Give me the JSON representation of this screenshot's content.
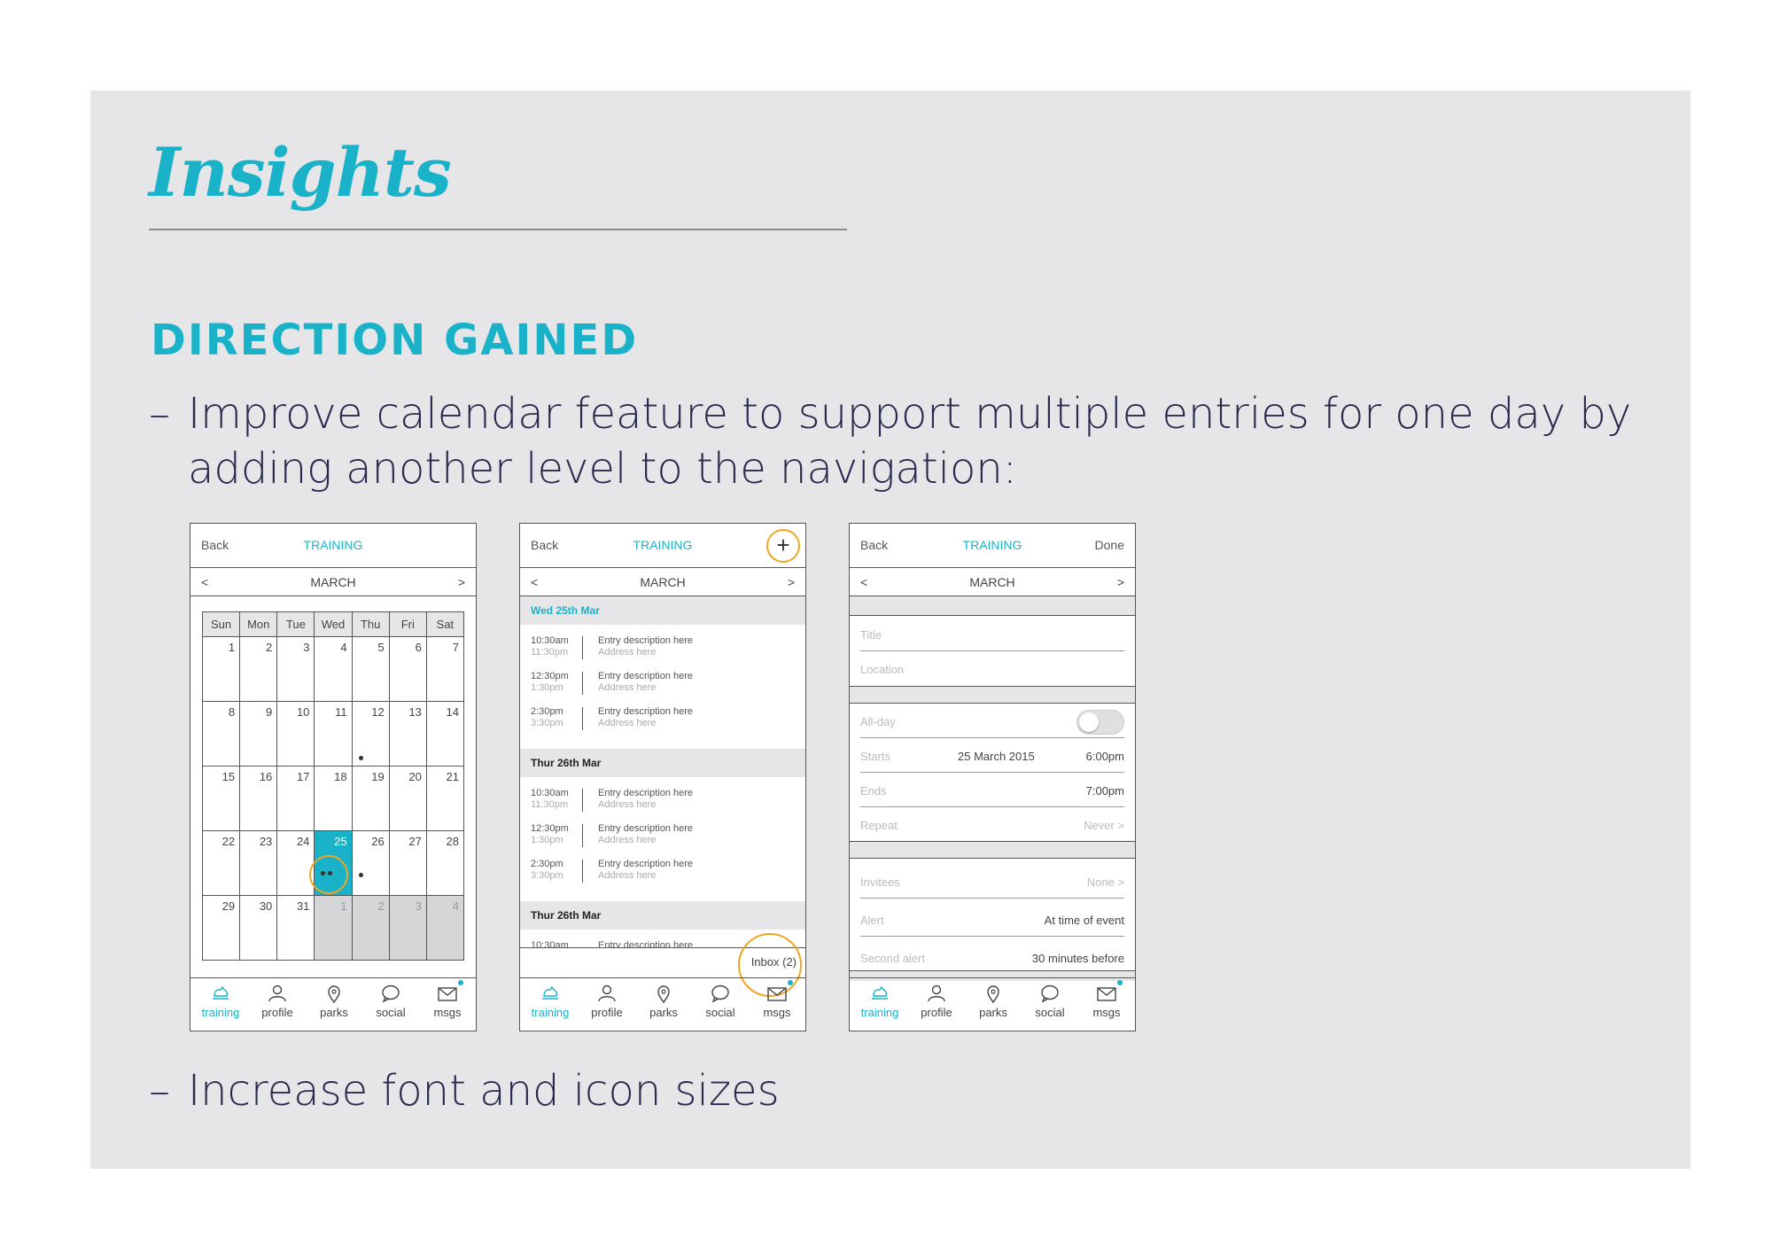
{
  "slide": {
    "title": "Insights",
    "heading": "DIRECTION GAINED",
    "dash": "–",
    "bullet1": "Improve calendar feature to support multiple entries for one day by adding another level to the navigation:",
    "bullet2": "Increase font and icon sizes"
  },
  "colors": {
    "accent": "#1ab2c8",
    "highlight": "#f0a623",
    "panel": "#e6e6e8",
    "text": "#2a2a50"
  },
  "nav": {
    "back": "Back",
    "title": "TRAINING",
    "done": "Done",
    "plus": "+"
  },
  "month": {
    "name": "MARCH",
    "prev": "<",
    "next": ">"
  },
  "calendar": {
    "weekdays": [
      "Sun",
      "Mon",
      "Tue",
      "Wed",
      "Thu",
      "Fri",
      "Sat"
    ],
    "weeks": [
      [
        "1",
        "2",
        "3",
        "4",
        "5",
        "6",
        "7"
      ],
      [
        "8",
        "9",
        "10",
        "11",
        "12",
        "13",
        "14"
      ],
      [
        "15",
        "16",
        "17",
        "18",
        "19",
        "20",
        "21"
      ],
      [
        "22",
        "23",
        "24",
        "25",
        "26",
        "27",
        "28"
      ],
      [
        "29",
        "30",
        "31",
        "1",
        "2",
        "3",
        "4"
      ]
    ],
    "selected_day": "25"
  },
  "tabs": [
    {
      "label": "training",
      "icon": "dog-icon",
      "active": true
    },
    {
      "label": "profile",
      "icon": "person-icon",
      "active": false
    },
    {
      "label": "parks",
      "icon": "location-pin-icon",
      "active": false
    },
    {
      "label": "social",
      "icon": "speech-bubble-icon",
      "active": false
    },
    {
      "label": "msgs",
      "icon": "envelope-icon",
      "active": false
    }
  ],
  "list": {
    "sections": [
      {
        "title": "Wed 25th Mar"
      },
      {
        "title": "Thur 26th Mar"
      },
      {
        "title": "Thur 26th Mar"
      }
    ],
    "entries": [
      {
        "start": "10:30am",
        "end": "11:30pm",
        "desc": "Entry description here",
        "addr": "Address here"
      },
      {
        "start": "12:30pm",
        "end": "1:30pm",
        "desc": "Entry description here",
        "addr": "Address here"
      },
      {
        "start": "2:30pm",
        "end": "3:30pm",
        "desc": "Entry description here",
        "addr": "Address here"
      }
    ],
    "partial_entry": {
      "start": "10:30am",
      "desc": "Entry description here"
    },
    "inbox": "Inbox (2)"
  },
  "form": {
    "title_placeholder": "Title",
    "location_placeholder": "Location",
    "allday_label": "All-day",
    "starts_label": "Starts",
    "starts_date": "25 March 2015",
    "starts_time": "6:00pm",
    "ends_label": "Ends",
    "ends_time": "7:00pm",
    "repeat_label": "Repeat",
    "repeat_value": "Never >",
    "invitees_label": "Invitees",
    "invitees_value": "None >",
    "alert_label": "Alert",
    "alert_value": "At time of event",
    "second_alert_label": "Second alert",
    "second_alert_value": "30 minutes before"
  }
}
